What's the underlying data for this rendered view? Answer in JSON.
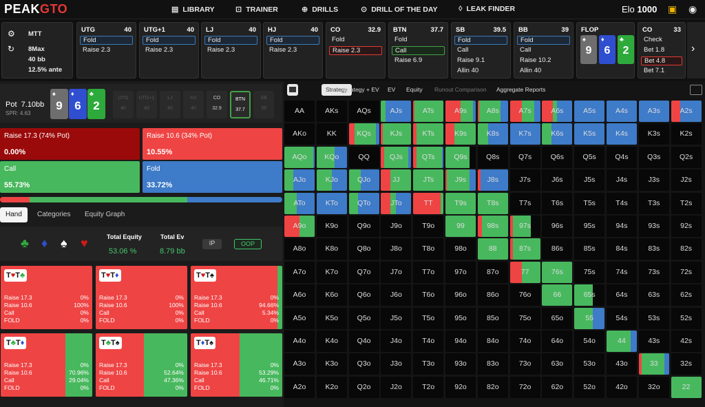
{
  "nav": {
    "logo_a": "PEAK",
    "logo_b": "GTO",
    "items": [
      "LIBRARY",
      "TRAINER",
      "DRILLS",
      "DRILL OF THE DAY",
      "LEAK FINDER"
    ],
    "elo_label": "Elo",
    "elo_value": "1000"
  },
  "settings": {
    "lines": [
      "MTT",
      "8Max",
      "40 bb",
      "12.5% ante"
    ]
  },
  "positions": [
    {
      "name": "UTG",
      "stack": "40",
      "actions": [
        "Fold",
        "Raise 2.3"
      ],
      "selected": 0,
      "sel_color": "blue"
    },
    {
      "name": "UTG+1",
      "stack": "40",
      "actions": [
        "Fold",
        "Raise 2.3"
      ],
      "selected": 0,
      "sel_color": "blue"
    },
    {
      "name": "LJ",
      "stack": "40",
      "actions": [
        "Fold",
        "Raise 2.3"
      ],
      "selected": 0,
      "sel_color": "blue"
    },
    {
      "name": "HJ",
      "stack": "40",
      "actions": [
        "Fold",
        "Raise 2.3"
      ],
      "selected": 0,
      "sel_color": "blue"
    },
    {
      "name": "CO",
      "stack": "32.9",
      "actions": [
        "Fold",
        "Raise 2.3"
      ],
      "selected": 1,
      "sel_color": "red"
    },
    {
      "name": "BTN",
      "stack": "37.7",
      "actions": [
        "Fold",
        "Call",
        "Raise 6.9"
      ],
      "selected": 1,
      "sel_color": "green"
    },
    {
      "name": "SB",
      "stack": "39.5",
      "actions": [
        "Fold",
        "Call",
        "Raise 9.1",
        "Allin 40"
      ],
      "selected": 0,
      "sel_color": "blue"
    },
    {
      "name": "BB",
      "stack": "39",
      "actions": [
        "Fold",
        "Call",
        "Raise 10.2",
        "Allin 40"
      ],
      "selected": 0,
      "sel_color": "blue"
    }
  ],
  "flop": {
    "label": "FLOP",
    "cards": [
      {
        "rank": "9",
        "suit": "♠",
        "color": "#6e6e6e"
      },
      {
        "rank": "6",
        "suit": "♦",
        "color": "#2f4fd0"
      },
      {
        "rank": "2",
        "suit": "♣",
        "color": "#2eaa3c"
      }
    ]
  },
  "co_post": {
    "name": "CO",
    "stack": "33",
    "actions": [
      "Check",
      "Bet 1.8",
      "Bet 4.8",
      "Bet 7.1"
    ],
    "selected": 2
  },
  "pot": {
    "label": "Pot",
    "value": "7.10bb",
    "spr": "SPR: 4.63"
  },
  "seats": [
    {
      "name": "UTG",
      "stack": "40",
      "state": "folded"
    },
    {
      "name": "UTG+1",
      "stack": "40",
      "state": "folded"
    },
    {
      "name": "LJ",
      "stack": "40",
      "state": "folded"
    },
    {
      "name": "HJ",
      "stack": "40",
      "state": "folded"
    },
    {
      "name": "CO",
      "stack": "32.9",
      "state": "active"
    },
    {
      "name": "BTN",
      "stack": "37.7",
      "state": "hero"
    },
    {
      "name": "SB",
      "stack": "39",
      "state": "folded"
    }
  ],
  "actions": [
    {
      "label": "Raise 17.3 (74% Pot)",
      "pct": "0.00%",
      "frac": 0.0,
      "color": "#9b0a0a"
    },
    {
      "label": "Raise 10.6 (34% Pot)",
      "pct": "10.55%",
      "frac": 0.1055,
      "color": "#ef4444"
    },
    {
      "label": "Call",
      "pct": "55.73%",
      "frac": 0.5573,
      "color": "#48b85e"
    },
    {
      "label": "Fold",
      "pct": "33.72%",
      "frac": 0.3372,
      "color": "#3e7bc8"
    }
  ],
  "left_tabs": [
    "Hand",
    "Categories",
    "Equity Graph"
  ],
  "equity": {
    "suits": [
      "♣",
      "♦",
      "♠",
      "♥"
    ],
    "total_equity_label": "Total Equity",
    "total_equity": "53.06 %",
    "total_ev_label": "Total Ev",
    "total_ev": "8.79 bb",
    "ip": "IP",
    "oop": "OOP"
  },
  "combos": [
    {
      "hole": "T♥T♣",
      "r173": "0%",
      "r106": "100%",
      "call": "0%",
      "fold": "0%",
      "green": 0.0
    },
    {
      "hole": "T♥T♦",
      "r173": "0%",
      "r106": "100%",
      "call": "0%",
      "fold": "0%",
      "green": 0.0
    },
    {
      "hole": "T♥T♠",
      "r173": "0%",
      "r106": "94.66%",
      "call": "5.34%",
      "fold": "0%",
      "green": 0.0534
    },
    {
      "hole": "T♣T♦",
      "r173": "0%",
      "r106": "70.96%",
      "call": "29.04%",
      "fold": "0%",
      "green": 0.2904
    },
    {
      "hole": "T♣T♠",
      "r173": "0%",
      "r106": "52.64%",
      "call": "47.36%",
      "fold": "0%",
      "green": 0.4736
    },
    {
      "hole": "T♦T♠",
      "r173": "0%",
      "r106": "53.29%",
      "call": "46.71%",
      "fold": "0%",
      "green": 0.4671
    }
  ],
  "combo_row_labels": [
    "Raise 17.3",
    "Raise 10.6",
    "Call",
    "FOLD"
  ],
  "right_tabs": [
    "Strategy",
    "Strategy + EV",
    "EV",
    "Equity",
    "Runout Comparison",
    "Aggregate Reports"
  ],
  "ranks": [
    "A",
    "K",
    "Q",
    "J",
    "T",
    "9",
    "8",
    "7",
    "6",
    "5",
    "4",
    "3",
    "2"
  ],
  "colors": {
    "raise_big": "#9b0a0a",
    "raise_small": "#ef4444",
    "call": "#48b85e",
    "fold": "#3e7bc8",
    "empty": "#080808"
  },
  "matrix_strategy": {
    "AJs": [
      0,
      0,
      0.15,
      0.85
    ],
    "ATs": [
      0,
      0.05,
      0.95,
      0
    ],
    "A9s": [
      0,
      0.5,
      0.4,
      0.1
    ],
    "A8s": [
      0,
      0.05,
      0.7,
      0.25
    ],
    "A7s": [
      0,
      0.4,
      0.4,
      0.2
    ],
    "A6s": [
      0,
      0.35,
      0.15,
      0.5
    ],
    "A5s": [
      0,
      0,
      0,
      1
    ],
    "A4s": [
      0,
      0,
      0,
      1
    ],
    "A3s": [
      0,
      0,
      0,
      1
    ],
    "A2s": [
      0,
      0.3,
      0,
      0.7
    ],
    "KQs": [
      0,
      0.2,
      0.7,
      0.1
    ],
    "KJs": [
      0,
      0.05,
      0.95,
      0
    ],
    "KTs": [
      0,
      0.1,
      0.9,
      0
    ],
    "K9s": [
      0,
      0.3,
      0.7,
      0
    ],
    "K8s": [
      0,
      0,
      0.35,
      0.65
    ],
    "K7s": [
      0,
      0,
      0,
      1
    ],
    "K6s": [
      0,
      0,
      0.3,
      0.7
    ],
    "K5s": [
      0,
      0,
      0,
      1
    ],
    "K4s": [
      0,
      0,
      0,
      1
    ],
    "AQo": [
      0,
      0,
      0.95,
      0.05
    ],
    "KQo": [
      0,
      0,
      0.6,
      0.4
    ],
    "QJs": [
      0,
      0.1,
      0.8,
      0.1
    ],
    "QTs": [
      0,
      0.1,
      0.85,
      0.05
    ],
    "Q9s": [
      0,
      0,
      0.8,
      0
    ],
    "AJo": [
      0,
      0,
      0.3,
      0.7
    ],
    "KJo": [
      0,
      0,
      0.5,
      0.5
    ],
    "QJo": [
      0,
      0,
      0.4,
      0.6
    ],
    "JJ": [
      0,
      0.3,
      0.7,
      0
    ],
    "JTs": [
      0,
      0,
      1,
      0
    ],
    "J9s": [
      0,
      0.05,
      0.75,
      0.2
    ],
    "J8s": [
      0,
      0.1,
      0,
      0.9
    ],
    "ATo": [
      0,
      0,
      0.4,
      0.6
    ],
    "KTo": [
      0,
      0,
      0,
      1
    ],
    "QTo": [
      0,
      0,
      0.3,
      0.7
    ],
    "JTo": [
      0,
      0.3,
      0.2,
      0.5
    ],
    "TT": [
      0,
      0.9,
      0.1,
      0
    ],
    "T9s": [
      0,
      0,
      1,
      0
    ],
    "T8s": [
      0,
      0,
      1,
      0
    ],
    "A9o": [
      0,
      0.5,
      0.5,
      0
    ],
    "99": [
      0,
      0,
      1,
      0
    ],
    "98s": [
      0,
      0.15,
      0.85,
      0
    ],
    "97s": [
      0,
      0.1,
      0.6,
      0
    ],
    "88": [
      0,
      0,
      1,
      0
    ],
    "87s": [
      0,
      0.1,
      0.9,
      0
    ],
    "77": [
      0,
      0.4,
      0.6,
      0
    ],
    "76s": [
      0,
      0,
      1,
      0
    ],
    "66": [
      0,
      0,
      1,
      0
    ],
    "65s": [
      0,
      0,
      0.6,
      0
    ],
    "55": [
      0,
      0,
      0.6,
      0.4
    ],
    "44": [
      0,
      0,
      0.8,
      0.2
    ],
    "33": [
      0,
      0.1,
      0.75,
      0.15
    ],
    "22": [
      0,
      0,
      1,
      0
    ]
  }
}
